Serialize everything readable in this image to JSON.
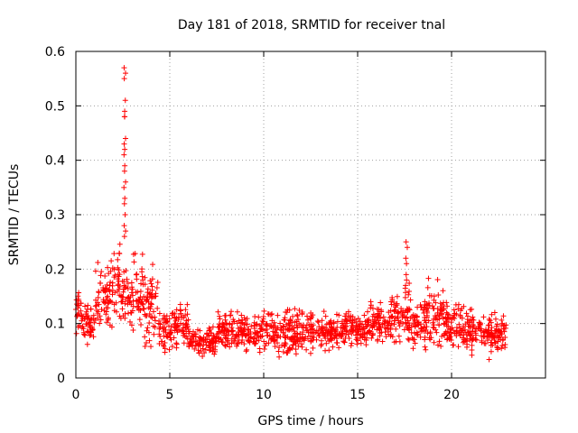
{
  "chart_data": {
    "type": "scatter",
    "title": "Day 181 of 2018, SRMTID for receiver tnal",
    "xlabel": "GPS time / hours",
    "ylabel": "SRMTID / TECUs",
    "xlim": [
      0,
      25
    ],
    "ylim": [
      0,
      0.6
    ],
    "xticks": [
      0,
      5,
      10,
      15,
      20
    ],
    "yticks": [
      0,
      0.1,
      0.2,
      0.3,
      0.4,
      0.5,
      0.6
    ],
    "grid": true,
    "marker": "+",
    "colors": {
      "series": "#ff0000",
      "grid": "#a0a0a0",
      "axis": "#000000"
    },
    "peaks": [
      {
        "x": 2.6,
        "values": [
          0.57,
          0.56,
          0.55,
          0.51,
          0.49,
          0.48,
          0.48,
          0.44,
          0.43,
          0.42,
          0.41,
          0.39,
          0.38,
          0.36,
          0.35,
          0.33,
          0.32,
          0.3,
          0.28,
          0.27,
          0.26
        ]
      },
      {
        "x": 17.6,
        "values": [
          0.25,
          0.24,
          0.22,
          0.21,
          0.19,
          0.18,
          0.17
        ]
      }
    ],
    "segments": [
      {
        "x": [
          0.0,
          0.3
        ],
        "y": [
          0.07,
          0.18
        ]
      },
      {
        "x": [
          0.3,
          1.0
        ],
        "y": [
          0.05,
          0.15
        ]
      },
      {
        "x": [
          1.0,
          2.0
        ],
        "y": [
          0.05,
          0.25
        ]
      },
      {
        "x": [
          2.0,
          2.4
        ],
        "y": [
          0.08,
          0.27
        ]
      },
      {
        "x": [
          2.4,
          3.0
        ],
        "y": [
          0.08,
          0.22
        ]
      },
      {
        "x": [
          3.0,
          3.6
        ],
        "y": [
          0.05,
          0.26
        ]
      },
      {
        "x": [
          3.6,
          4.4
        ],
        "y": [
          0.04,
          0.22
        ]
      },
      {
        "x": [
          4.4,
          5.5
        ],
        "y": [
          0.04,
          0.14
        ]
      },
      {
        "x": [
          5.5,
          6.0
        ],
        "y": [
          0.03,
          0.16
        ]
      },
      {
        "x": [
          6.0,
          7.5
        ],
        "y": [
          0.03,
          0.11
        ]
      },
      {
        "x": [
          7.5,
          10.0
        ],
        "y": [
          0.04,
          0.13
        ]
      },
      {
        "x": [
          10.0,
          12.5
        ],
        "y": [
          0.03,
          0.14
        ]
      },
      {
        "x": [
          12.5,
          14.0
        ],
        "y": [
          0.04,
          0.13
        ]
      },
      {
        "x": [
          14.0,
          15.5
        ],
        "y": [
          0.05,
          0.13
        ]
      },
      {
        "x": [
          15.5,
          16.8
        ],
        "y": [
          0.05,
          0.15
        ]
      },
      {
        "x": [
          16.8,
          17.8
        ],
        "y": [
          0.05,
          0.19
        ]
      },
      {
        "x": [
          17.8,
          18.6
        ],
        "y": [
          0.04,
          0.16
        ]
      },
      {
        "x": [
          18.6,
          19.6
        ],
        "y": [
          0.04,
          0.2
        ]
      },
      {
        "x": [
          19.6,
          20.6
        ],
        "y": [
          0.04,
          0.16
        ]
      },
      {
        "x": [
          20.6,
          21.5
        ],
        "y": [
          0.03,
          0.14
        ]
      },
      {
        "x": [
          21.5,
          22.9
        ],
        "y": [
          0.03,
          0.13
        ]
      }
    ]
  }
}
